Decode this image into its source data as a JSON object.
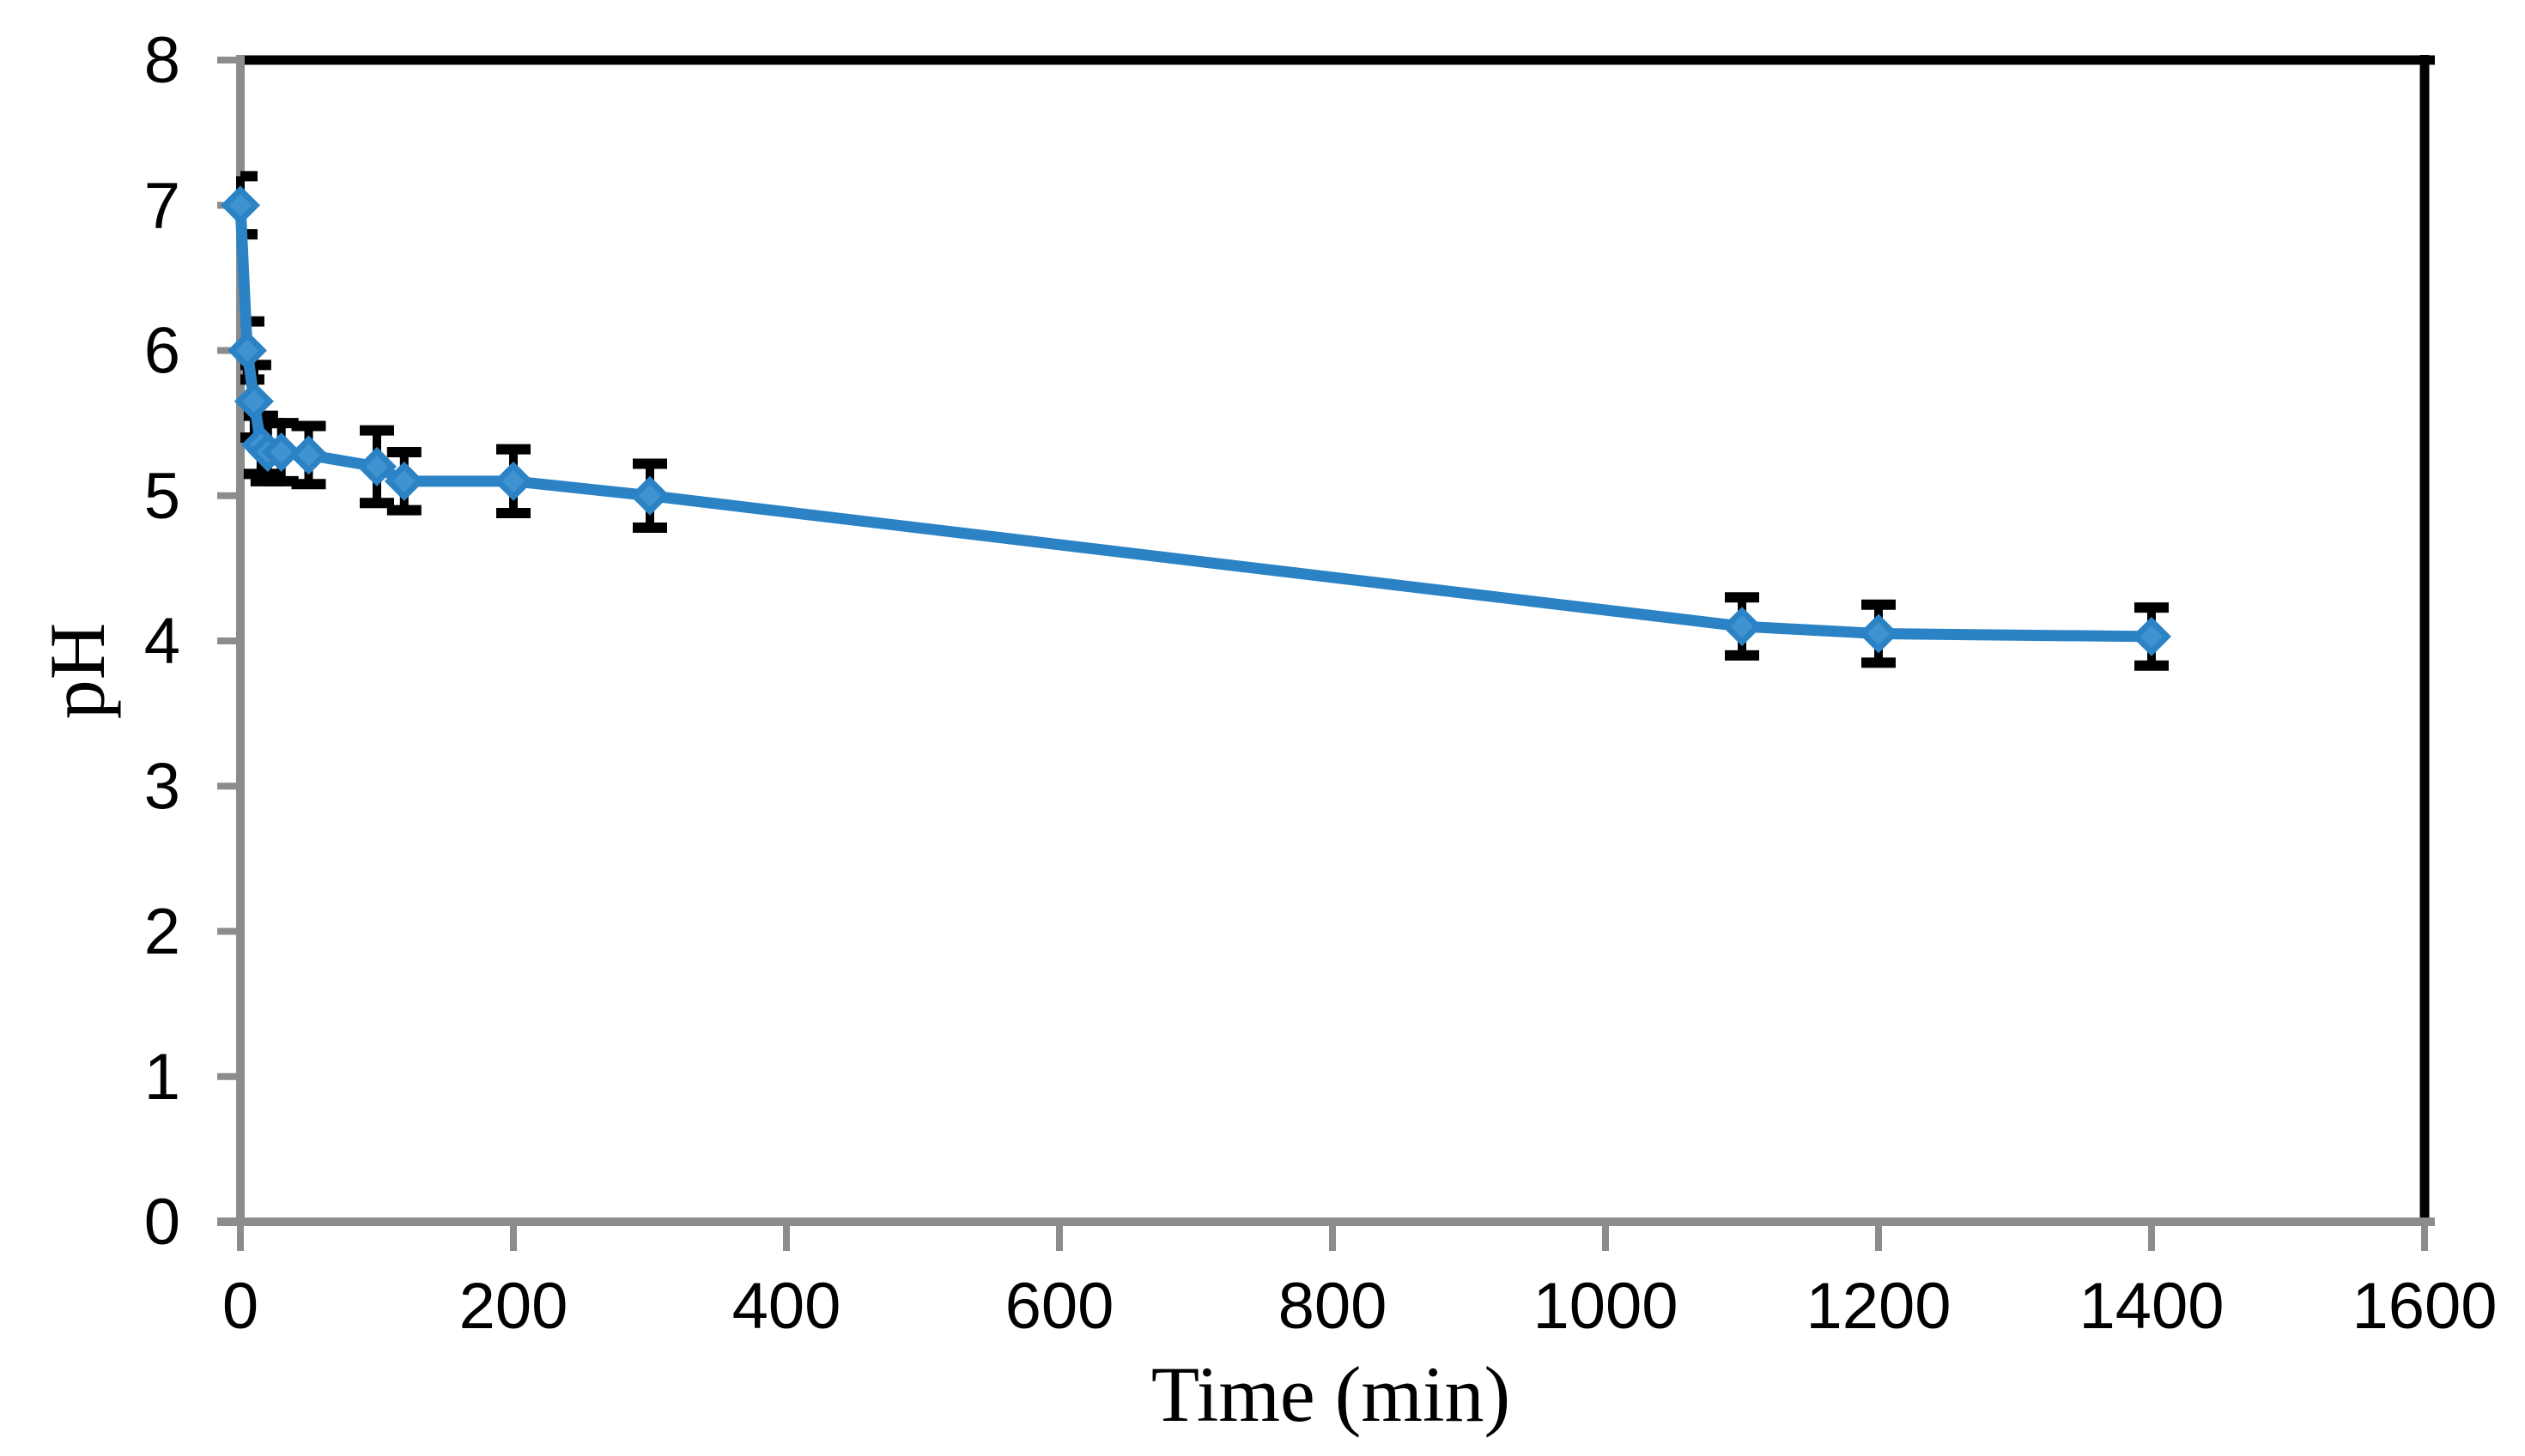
{
  "chart_data": {
    "type": "line",
    "title": "",
    "xlabel": "Time (min)",
    "ylabel": "pH",
    "xlim": [
      0,
      1600
    ],
    "ylim": [
      0,
      8
    ],
    "x_ticks": [
      0,
      200,
      400,
      600,
      800,
      1000,
      1200,
      1400,
      1600
    ],
    "y_ticks": [
      0,
      1,
      2,
      3,
      4,
      5,
      6,
      7,
      8
    ],
    "grid": false,
    "legend": "none",
    "colors": {
      "series": "#2b83c5",
      "series_inner": "#3f93d0",
      "axis_line": "#8c8c8c",
      "plot_border": "#000000",
      "error_bar": "#000000",
      "tick_text": "#000000"
    },
    "series": [
      {
        "name": "pH",
        "marker": "diamond",
        "x": [
          0,
          5,
          10,
          15,
          20,
          30,
          50,
          100,
          120,
          200,
          300,
          1100,
          1200,
          1400
        ],
        "y": [
          7.0,
          6.0,
          5.65,
          5.35,
          5.3,
          5.3,
          5.28,
          5.2,
          5.1,
          5.1,
          5.0,
          4.1,
          4.05,
          4.03
        ],
        "yerr": [
          0.2,
          0.2,
          0.25,
          0.2,
          0.2,
          0.2,
          0.2,
          0.25,
          0.2,
          0.22,
          0.22,
          0.2,
          0.2,
          0.2
        ]
      }
    ]
  }
}
